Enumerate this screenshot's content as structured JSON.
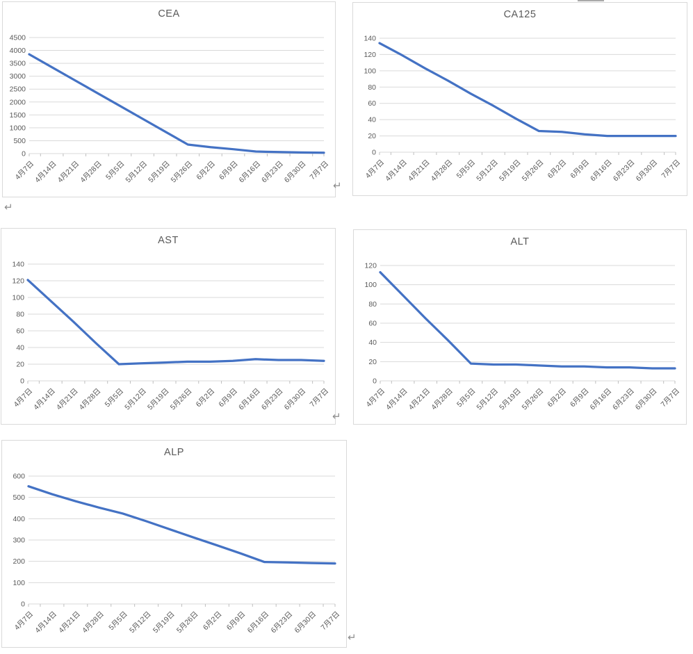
{
  "document": {
    "kind": "word-document-page-with-embedded-charts",
    "background": "#ffffff",
    "return_symbol": "↵"
  },
  "chart_defaults": {
    "line_color": "#4472C4",
    "grid_color": "#D9D9D9",
    "tick_color": "#BFBFBF",
    "axis_text_color": "#595959",
    "title_color": "#595959",
    "border_color": "#D9D9D9",
    "legend": "none",
    "x_tick_label_rotation": -45
  },
  "chart_data": [
    {
      "type": "line",
      "title": "CEA",
      "xlabel": "",
      "ylabel": "",
      "categories": [
        "4月7日",
        "4月14日",
        "4月21日",
        "4月28日",
        "5月5日",
        "5月12日",
        "5月19日",
        "5月26日",
        "6月2日",
        "6月9日",
        "6月16日",
        "6月23日",
        "6月30日",
        "7月7日"
      ],
      "values": [
        3850,
        3350,
        2850,
        2350,
        1850,
        1350,
        850,
        350,
        250,
        170,
        80,
        60,
        45,
        35
      ],
      "ylim": [
        0,
        4500
      ],
      "ytick_step": 500,
      "grid": true
    },
    {
      "type": "line",
      "title": "CA125",
      "xlabel": "",
      "ylabel": "",
      "categories": [
        "4月7日",
        "4月14日",
        "4月21日",
        "4月28日",
        "5月5日",
        "5月12日",
        "5月19日",
        "5月26日",
        "6月2日",
        "6月9日",
        "6月16日",
        "6月23日",
        "6月30日",
        "7月7日"
      ],
      "values": [
        134,
        119,
        103,
        88,
        72,
        57,
        41,
        26,
        25,
        22,
        20,
        20,
        20,
        20
      ],
      "ylim": [
        0,
        140
      ],
      "ytick_step": 20,
      "grid": true
    },
    {
      "type": "line",
      "title": "AST",
      "xlabel": "",
      "ylabel": "",
      "categories": [
        "4月7日",
        "4月14日",
        "4月21日",
        "4月28日",
        "5月5日",
        "5月12日",
        "5月19日",
        "5月26日",
        "6月2日",
        "6月9日",
        "6月16日",
        "6月23日",
        "6月30日",
        "7月7日"
      ],
      "values": [
        121,
        96,
        71,
        45,
        20,
        21,
        22,
        23,
        23,
        24,
        26,
        25,
        25,
        24
      ],
      "ylim": [
        0,
        140
      ],
      "ytick_step": 20,
      "grid": true
    },
    {
      "type": "line",
      "title": "ALT",
      "xlabel": "",
      "ylabel": "",
      "categories": [
        "4月7日",
        "4月14日",
        "4月21日",
        "4月28日",
        "5月5日",
        "5月12日",
        "5月19日",
        "5月26日",
        "6月2日",
        "6月9日",
        "6月16日",
        "6月23日",
        "6月30日",
        "7月7日"
      ],
      "values": [
        113,
        89,
        65,
        42,
        18,
        17,
        17,
        16,
        15,
        15,
        14,
        14,
        13,
        13
      ],
      "ylim": [
        0,
        120
      ],
      "ytick_step": 20,
      "grid": true
    },
    {
      "type": "line",
      "title": "ALP",
      "xlabel": "",
      "ylabel": "",
      "categories": [
        "4月7日",
        "4月14日",
        "4月21日",
        "4月28日",
        "5月5日",
        "5月12日",
        "5月19日",
        "5月26日",
        "6月2日",
        "6月9日",
        "6月16日",
        "6月23日",
        "6月30日",
        "7月7日"
      ],
      "values": [
        552,
        515,
        482,
        452,
        424,
        388,
        350,
        312,
        275,
        237,
        197,
        195,
        192,
        190
      ],
      "ylim": [
        0,
        600
      ],
      "ytick_step": 100,
      "grid": true
    }
  ]
}
